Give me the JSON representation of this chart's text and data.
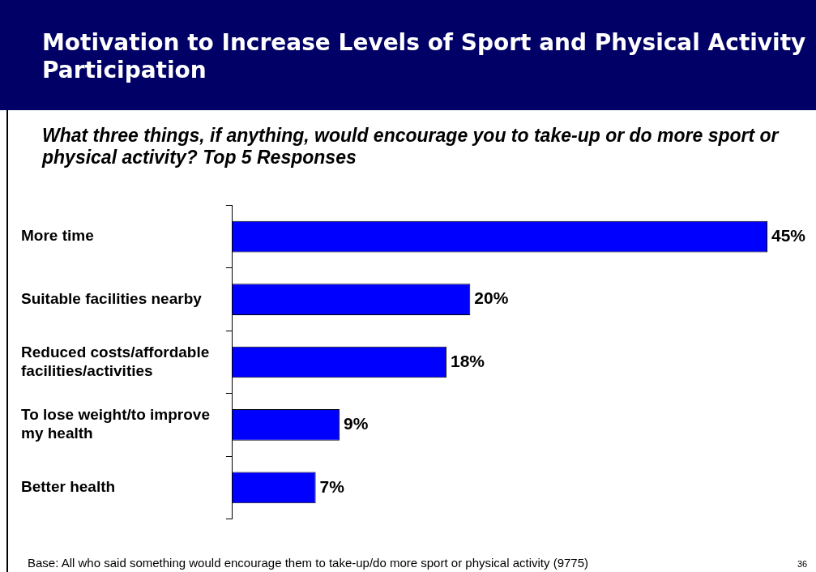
{
  "chart_data": {
    "type": "bar",
    "orientation": "horizontal",
    "title": "Motivation to Increase Levels of Sport and Physical Activity Participation",
    "subtitle": "What three things, if anything, would encourage you to take-up or do more sport or physical activity?  Top 5 Responses",
    "categories": [
      "More time",
      "Suitable facilities nearby",
      "Reduced costs/affordable facilities/activities",
      "To lose weight/to improve my health",
      "Better health"
    ],
    "values": [
      45,
      20,
      18,
      9,
      7
    ],
    "value_labels": [
      "45%",
      "20%",
      "18%",
      "9%",
      "7%"
    ],
    "color": "#0000ff",
    "tick_labels": "y",
    "grid": false,
    "legend": false,
    "annotations": [
      "Base: All who said something would encourage them to take-up/do more sport or physical activity (9775)",
      "36"
    ]
  }
}
